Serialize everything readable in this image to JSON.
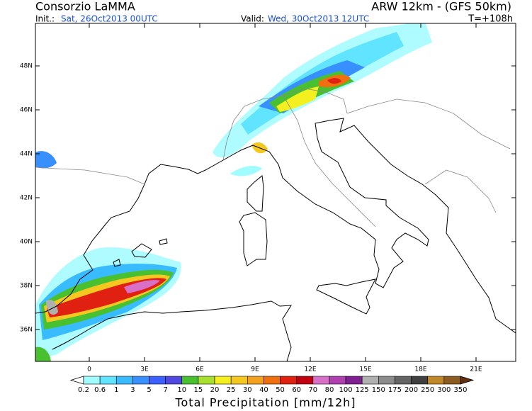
{
  "header": {
    "left_title": "Consorzio LaMMA",
    "right_title": "ARW 12km - (GFS 50km)",
    "init_label": "Init.:",
    "init_value": "Sat, 26Oct2013 00UTC",
    "valid_label": "Valid:",
    "valid_value": "Wed, 30Oct2013 12UTC",
    "forecast_time": "T=+108h"
  },
  "map": {
    "lat_labels": [
      "48N",
      "46N",
      "44N",
      "42N",
      "40N",
      "38N",
      "36N"
    ],
    "lon_labels": [
      "0",
      "3E",
      "6E",
      "9E",
      "12E",
      "15E",
      "18E",
      "21E"
    ]
  },
  "colorbar": {
    "title": "Total Precipitation [mm/12h]",
    "labels": [
      "0.2",
      "0.6",
      "1",
      "3",
      "5",
      "7",
      "10",
      "15",
      "20",
      "25",
      "30",
      "40",
      "50",
      "60",
      "70",
      "80",
      "100",
      "125",
      "150",
      "175",
      "200",
      "250",
      "300",
      "350"
    ],
    "colors": [
      "#a0fcff",
      "#60e4ff",
      "#38bcff",
      "#3890ff",
      "#3c60ff",
      "#5048e0",
      "#48c030",
      "#a8e030",
      "#f4f020",
      "#f4c820",
      "#f4a020",
      "#f07010",
      "#e02010",
      "#c00010",
      "#d870c8",
      "#b040b0",
      "#802090",
      "#b0b0b0",
      "#8c8c8c",
      "#646464",
      "#404040",
      "#c08828",
      "#8c5c20"
    ],
    "under_color": "#ffffff",
    "over_color": "#603010"
  }
}
